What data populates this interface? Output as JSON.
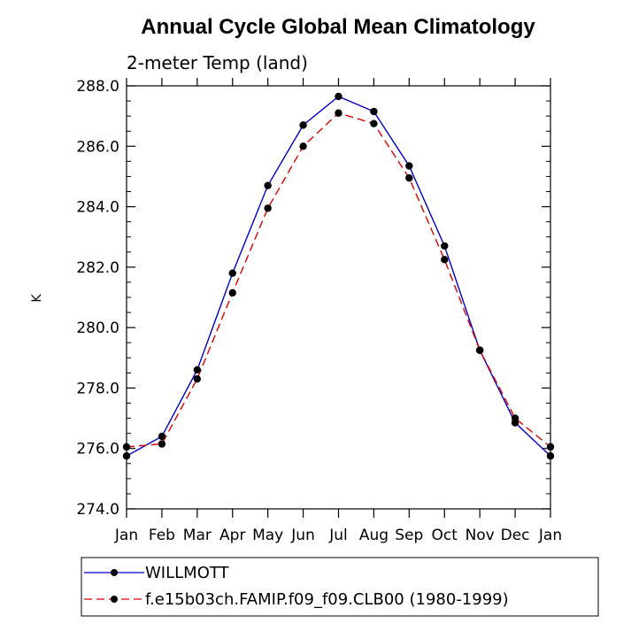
{
  "chart_data": {
    "type": "line",
    "title": "Annual Cycle Global Mean Climatology",
    "subtitle": "2-meter Temp (land)",
    "xlabel": "",
    "ylabel": "K",
    "categories": [
      "Jan",
      "Feb",
      "Mar",
      "Apr",
      "May",
      "Jun",
      "Jul",
      "Aug",
      "Sep",
      "Oct",
      "Nov",
      "Dec",
      "Jan"
    ],
    "ylim": [
      274.0,
      288.0
    ],
    "yticks": [
      "274.0",
      "276.0",
      "278.0",
      "280.0",
      "282.0",
      "284.0",
      "286.0",
      "288.0"
    ],
    "grid": false,
    "legend_position": "bottom",
    "series": [
      {
        "name": "WILLMOTT",
        "color": "#0000cc",
        "line_style": "solid",
        "marker": "filled-circle",
        "values": [
          275.75,
          276.4,
          278.6,
          281.8,
          284.7,
          286.7,
          287.65,
          287.15,
          285.35,
          282.7,
          279.25,
          276.85,
          275.75
        ]
      },
      {
        "name": "f.e15b03ch.FAMIP.f09_f09.CLB00 (1980-1999)",
        "color": "#dd0000",
        "line_style": "dashed",
        "marker": "filled-circle",
        "values": [
          276.05,
          276.15,
          278.3,
          281.15,
          283.95,
          286.0,
          287.1,
          286.75,
          284.95,
          282.25,
          279.25,
          277.0,
          276.05
        ]
      }
    ]
  }
}
